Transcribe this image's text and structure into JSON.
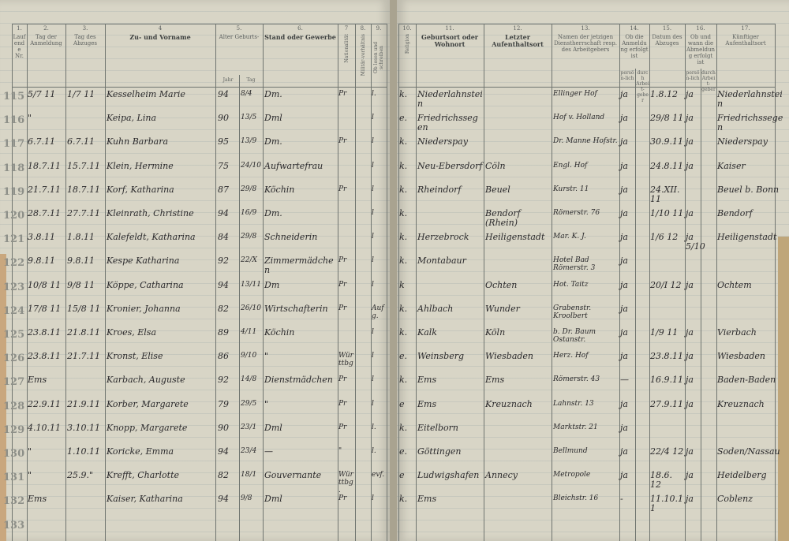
{
  "left_headers": [
    {
      "num": "1.",
      "label": "Laufende Nr."
    },
    {
      "num": "2.",
      "label": "Tag der Anmeldung"
    },
    {
      "num": "3.",
      "label": "Tag des Abzuges"
    },
    {
      "num": "4",
      "label": "Zu- und Vorname",
      "bold": true
    },
    {
      "num": "5.",
      "label": "Alter Geburts-"
    },
    {
      "num": "6.",
      "label": "Stand oder Gewerbe",
      "bold": true
    },
    {
      "num": "7",
      "label": "Nationalität",
      "vertical": true
    },
    {
      "num": "8.",
      "label": "Militär-verhältnis",
      "vertical": true
    },
    {
      "num": "9.",
      "label": "Ob lesen und schreiben",
      "vertical": true
    }
  ],
  "age_sub": {
    "jahr": "Jahr",
    "tag": "Tag"
  },
  "right_headers": [
    {
      "num": "10.",
      "label": "Religion",
      "vertical": true
    },
    {
      "num": "11.",
      "label": "Geburtsort oder Wohnort",
      "bold": true
    },
    {
      "num": "12.",
      "label": "Letzter Aufenthaltsort",
      "bold": true
    },
    {
      "num": "13.",
      "label": "Namen der jetzigen Dienstherrschaft resp. des Arbeitgebers"
    },
    {
      "num": "14.",
      "label": "Ob die Anmeldung erfolgt ist"
    },
    {
      "num": "15.",
      "label": "Datum des Abzuges"
    },
    {
      "num": "16.",
      "label": "Ob und wann die Abmeldung erfolgt ist"
    },
    {
      "num": "17.",
      "label": "Künftiger Aufenthaltsort"
    }
  ],
  "sub14": {
    "a": "persön-lich",
    "b": "durch Arbeit-geber"
  },
  "sub16": {
    "a": "persön-lich",
    "b": "durch Arbeit-geber"
  },
  "rows": [
    {
      "nr": "115",
      "anm": "5/7 11",
      "abz": "1/7 11",
      "name": "Kesselheim Marie",
      "jahr": "94",
      "tag": "8/4",
      "stand": "Dm.",
      "nat": "Pr",
      "mil": "",
      "c9": "l.",
      "rel": "k.",
      "geb": "Niederlahnstein",
      "letzt": "",
      "dienst": "Ellinger Hof",
      "p14": "ja",
      "abzug": "1.8.12",
      "p16": "ja",
      "kuenftig": "Niederlahnstein"
    },
    {
      "nr": "116",
      "anm": "\"",
      "abz": "",
      "name": "Keipa, Lina",
      "jahr": "90",
      "tag": "13/5",
      "stand": "Dml",
      "nat": "",
      "mil": "",
      "c9": "l",
      "rel": "e.",
      "geb": "Friedrichssegen",
      "letzt": "",
      "dienst": "Hof v. Holland",
      "p14": "ja",
      "abzug": "29/8 11",
      "p16": "ja",
      "kuenftig": "Friedrichssegen"
    },
    {
      "nr": "117",
      "anm": "6.7.11",
      "abz": "6.7.11",
      "name": "Kuhn Barbara",
      "jahr": "95",
      "tag": "13/9",
      "stand": "Dm.",
      "nat": "Pr",
      "mil": "",
      "c9": "l",
      "rel": "k.",
      "geb": "Niederspay",
      "letzt": "",
      "dienst": "Dr. Manne Hofstr.",
      "p14": "ja",
      "abzug": "30.9.11",
      "p16": "ja",
      "kuenftig": "Niederspay"
    },
    {
      "nr": "118",
      "anm": "18.7.11",
      "abz": "15.7.11",
      "name": "Klein, Hermine",
      "jahr": "75",
      "tag": "24/10",
      "stand": "Aufwartefrau",
      "nat": "",
      "mil": "",
      "c9": "l",
      "rel": "k.",
      "geb": "Neu-Ebersdorf",
      "letzt": "Cöln",
      "dienst": "Engl. Hof",
      "p14": "ja",
      "abzug": "24.8.11",
      "p16": "ja",
      "kuenftig": "Kaiser"
    },
    {
      "nr": "119",
      "anm": "21.7.11",
      "abz": "18.7.11",
      "name": "Korf, Katharina",
      "jahr": "87",
      "tag": "29/8",
      "stand": "Köchin",
      "nat": "Pr",
      "mil": "",
      "c9": "l",
      "rel": "k.",
      "geb": "Rheindorf",
      "letzt": "Beuel",
      "dienst": "Kurstr. 11",
      "p14": "ja",
      "abzug": "24.XII.11",
      "p16": "",
      "kuenftig": "Beuel b. Bonn"
    },
    {
      "nr": "120",
      "anm": "28.7.11",
      "abz": "27.7.11",
      "name": "Kleinrath, Christine",
      "jahr": "94",
      "tag": "16/9",
      "stand": "Dm.",
      "nat": "",
      "mil": "",
      "c9": "l",
      "rel": "k.",
      "geb": "",
      "letzt": "Bendorf (Rhein)",
      "dienst": "Römerstr. 76",
      "p14": "ja",
      "abzug": "1/10 11",
      "p16": "ja",
      "kuenftig": "Bendorf"
    },
    {
      "nr": "121",
      "anm": "3.8.11",
      "abz": "1.8.11",
      "name": "Kalefeldt, Katharina",
      "jahr": "84",
      "tag": "29/8",
      "stand": "Schneiderin",
      "nat": "",
      "mil": "",
      "c9": "l",
      "rel": "k.",
      "geb": "Herzebrock",
      "letzt": "Heiligenstadt",
      "dienst": "Mar. K. J.",
      "p14": "ja",
      "abzug": "1/6 12",
      "p16": "ja 5/10",
      "kuenftig": "Heiligenstadt"
    },
    {
      "nr": "122",
      "anm": "9.8.11",
      "abz": "9.8.11",
      "name": "Kespe Katharina",
      "jahr": "92",
      "tag": "22/X",
      "stand": "Zimmermädchen",
      "nat": "Pr",
      "mil": "",
      "c9": "l",
      "rel": "k.",
      "geb": "Montabaur",
      "letzt": "",
      "dienst": "Hotel Bad Römerstr. 3",
      "p14": "ja",
      "abzug": "",
      "p16": "",
      "kuenftig": ""
    },
    {
      "nr": "123",
      "anm": "10/8 11",
      "abz": "9/8 11",
      "name": "Köppe, Catharina",
      "jahr": "94",
      "tag": "13/11",
      "stand": "Dm",
      "nat": "Pr",
      "mil": "",
      "c9": "l",
      "rel": "k",
      "geb": "",
      "letzt": "Ochten",
      "dienst": "Hot. Taitz",
      "p14": "ja",
      "abzug": "20/I 12",
      "p16": "ja",
      "kuenftig": "Ochtem"
    },
    {
      "nr": "124",
      "anm": "17/8 11",
      "abz": "15/8 11",
      "name": "Kronier, Johanna",
      "jahr": "82",
      "tag": "26/10",
      "stand": "Wirtschafterin",
      "nat": "Pr",
      "mil": "",
      "c9": "Aufg.",
      "rel": "k.",
      "geb": "Ahlbach",
      "letzt": "Wunder",
      "dienst": "Grabenstr. Kroolbert",
      "p14": "ja",
      "abzug": "",
      "p16": "",
      "kuenftig": ""
    },
    {
      "nr": "125",
      "anm": "23.8.11",
      "abz": "21.8.11",
      "name": "Kroes, Elsa",
      "jahr": "89",
      "tag": "4/11",
      "stand": "Köchin",
      "nat": "",
      "mil": "",
      "c9": "l",
      "rel": "k.",
      "geb": "Kalk",
      "letzt": "Köln",
      "dienst": "b. Dr. Baum Ostanstr.",
      "p14": "ja",
      "abzug": "1/9 11",
      "p16": "ja",
      "kuenftig": "Vierbach"
    },
    {
      "nr": "126",
      "anm": "23.8.11",
      "abz": "21.7.11",
      "name": "Kronst, Elise",
      "jahr": "86",
      "tag": "9/10",
      "stand": "\"",
      "nat": "Württbg",
      "mil": "",
      "c9": "l",
      "rel": "e.",
      "geb": "Weinsberg",
      "letzt": "Wiesbaden",
      "dienst": "Herz. Hof",
      "p14": "ja",
      "abzug": "23.8.11",
      "p16": "ja",
      "kuenftig": "Wiesbaden"
    },
    {
      "nr": "127",
      "anm": "Ems",
      "abz": "",
      "name": "Karbach, Auguste",
      "jahr": "92",
      "tag": "14/8",
      "stand": "Dienstmädchen",
      "nat": "Pr",
      "mil": "",
      "c9": "l",
      "rel": "k.",
      "geb": "Ems",
      "letzt": "Ems",
      "dienst": "Römerstr. 43",
      "p14": "—",
      "abzug": "16.9.11",
      "p16": "ja",
      "kuenftig": "Baden-Baden"
    },
    {
      "nr": "128",
      "anm": "22.9.11",
      "abz": "21.9.11",
      "name": "Korber, Margarete",
      "jahr": "79",
      "tag": "29/5",
      "stand": "\"",
      "nat": "Pr",
      "mil": "",
      "c9": "l",
      "rel": "e",
      "geb": "Ems",
      "letzt": "Kreuznach",
      "dienst": "Lahnstr. 13",
      "p14": "ja",
      "abzug": "27.9.11",
      "p16": "ja",
      "kuenftig": "Kreuznach"
    },
    {
      "nr": "129",
      "anm": "4.10.11",
      "abz": "3.10.11",
      "name": "Knopp, Margarete",
      "jahr": "90",
      "tag": "23/1",
      "stand": "Dml",
      "nat": "Pr",
      "mil": "",
      "c9": "l.",
      "rel": "k.",
      "geb": "Eitelborn",
      "letzt": "",
      "dienst": "Marktstr. 21",
      "p14": "ja",
      "abzug": "",
      "p16": "",
      "kuenftig": ""
    },
    {
      "nr": "130",
      "anm": "\"",
      "abz": "1.10.11",
      "name": "Koricke, Emma",
      "jahr": "94",
      "tag": "23/4",
      "stand": "—",
      "nat": "\"",
      "mil": "",
      "c9": "l.",
      "rel": "e.",
      "geb": "Göttingen",
      "letzt": "",
      "dienst": "Bellmund",
      "p14": "ja",
      "abzug": "22/4 12",
      "p16": "ja",
      "kuenftig": "Soden/Nassau"
    },
    {
      "nr": "131",
      "anm": "\"",
      "abz": "25.9.\"",
      "name": "Krefft, Charlotte",
      "jahr": "82",
      "tag": "18/1",
      "stand": "Gouvernante",
      "nat": "Württbg.",
      "mil": "",
      "c9": "evf.",
      "rel": "e",
      "geb": "Ludwigshafen",
      "letzt": "Annecy",
      "dienst": "Metropole",
      "p14": "ja",
      "abzug": "18.6. 12",
      "p16": "ja",
      "kuenftig": "Heidelberg"
    },
    {
      "nr": "132",
      "anm": "Ems",
      "abz": "",
      "name": "Kaiser, Katharina",
      "jahr": "94",
      "tag": "9/8",
      "stand": "Dml",
      "nat": "Pr",
      "mil": "",
      "c9": "l",
      "rel": "k.",
      "geb": "Ems",
      "letzt": "",
      "dienst": "Bleichstr. 16",
      "p14": "-",
      "abzug": "11.10.11",
      "p16": "ja",
      "kuenftig": "Coblenz"
    },
    {
      "nr": "133"
    }
  ]
}
